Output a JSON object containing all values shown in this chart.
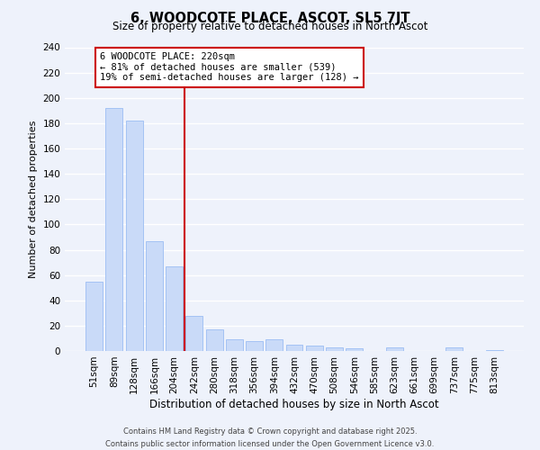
{
  "title": "6, WOODCOTE PLACE, ASCOT, SL5 7JT",
  "subtitle": "Size of property relative to detached houses in North Ascot",
  "xlabel": "Distribution of detached houses by size in North Ascot",
  "ylabel": "Number of detached properties",
  "bin_labels": [
    "51sqm",
    "89sqm",
    "128sqm",
    "166sqm",
    "204sqm",
    "242sqm",
    "280sqm",
    "318sqm",
    "356sqm",
    "394sqm",
    "432sqm",
    "470sqm",
    "508sqm",
    "546sqm",
    "585sqm",
    "623sqm",
    "661sqm",
    "699sqm",
    "737sqm",
    "775sqm",
    "813sqm"
  ],
  "bar_values": [
    55,
    192,
    182,
    87,
    67,
    28,
    17,
    9,
    8,
    9,
    5,
    4,
    3,
    2,
    0,
    3,
    0,
    0,
    3,
    0,
    1
  ],
  "bar_color": "#c9daf8",
  "bar_edge_color": "#a4c2f4",
  "subject_line_color": "#cc0000",
  "annotation_title": "6 WOODCOTE PLACE: 220sqm",
  "annotation_line1": "← 81% of detached houses are smaller (539)",
  "annotation_line2": "19% of semi-detached houses are larger (128) →",
  "annotation_box_color": "#ffffff",
  "annotation_box_edge": "#cc0000",
  "ylim": [
    0,
    240
  ],
  "yticks": [
    0,
    20,
    40,
    60,
    80,
    100,
    120,
    140,
    160,
    180,
    200,
    220,
    240
  ],
  "footer1": "Contains HM Land Registry data © Crown copyright and database right 2025.",
  "footer2": "Contains public sector information licensed under the Open Government Licence v3.0.",
  "bg_color": "#eef2fb",
  "grid_color": "#ffffff",
  "title_fontsize": 10.5,
  "subtitle_fontsize": 8.5,
  "ylabel_fontsize": 8,
  "xlabel_fontsize": 8.5,
  "tick_fontsize": 7.5,
  "footer_fontsize": 6.0,
  "ann_fontsize": 7.5
}
